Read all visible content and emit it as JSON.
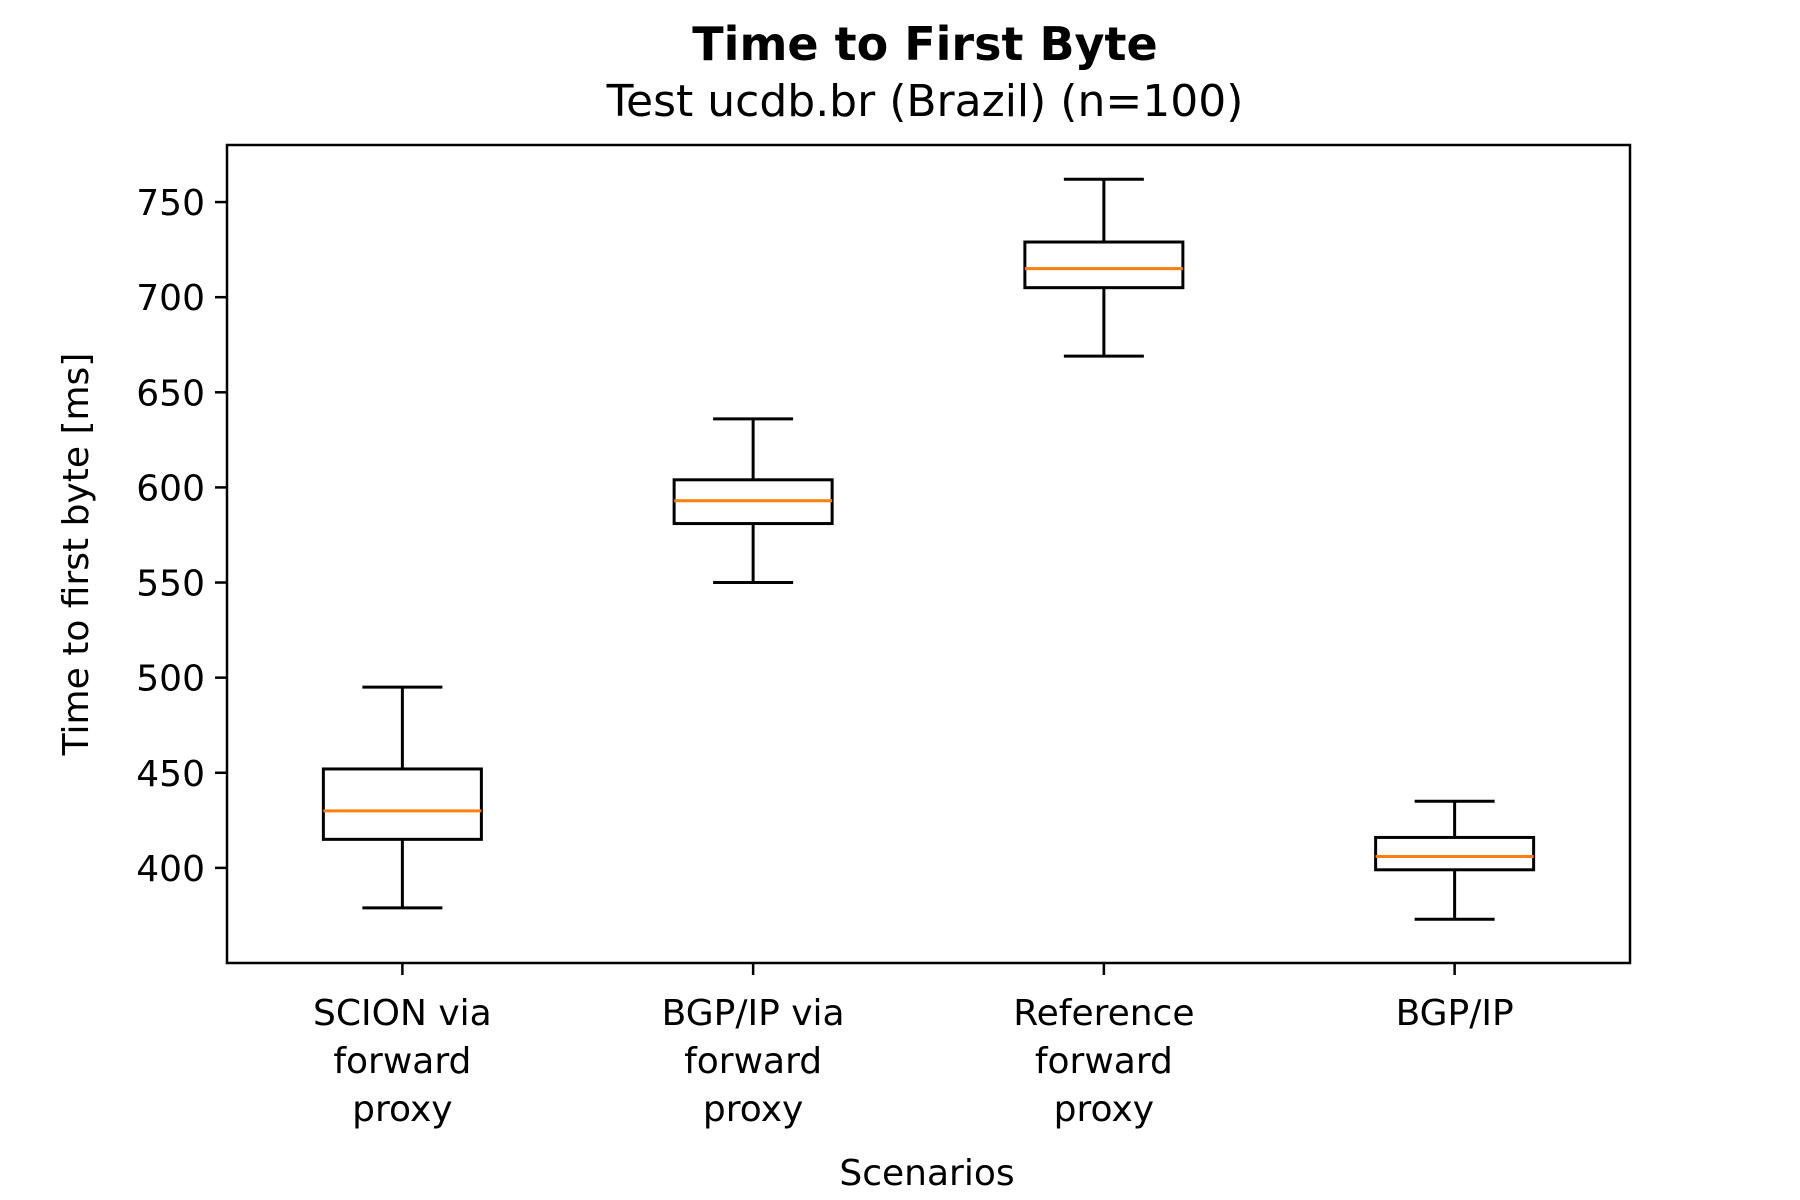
{
  "chart_data": {
    "type": "box",
    "title": "Time to First Byte",
    "subtitle": "Test ucdb.br (Brazil) (n=100)",
    "xlabel": "Scenarios",
    "ylabel": "Time to first byte [ms]",
    "ylim": [
      350,
      780
    ],
    "yticks": [
      400,
      450,
      500,
      550,
      600,
      650,
      700,
      750
    ],
    "colors": {
      "box": "#000000",
      "median": "#ff7f0e"
    },
    "categories": [
      [
        "SCION via",
        "forward",
        "proxy"
      ],
      [
        "BGP/IP via",
        "forward",
        "proxy"
      ],
      [
        "Reference",
        "forward",
        "proxy"
      ],
      [
        "BGP/IP"
      ]
    ],
    "boxes": [
      {
        "whisker_low": 379,
        "q1": 415,
        "median": 430,
        "q3": 452,
        "whisker_high": 495
      },
      {
        "whisker_low": 550,
        "q1": 581,
        "median": 593,
        "q3": 604,
        "whisker_high": 636
      },
      {
        "whisker_low": 669,
        "q1": 705,
        "median": 715,
        "q3": 729,
        "whisker_high": 762
      },
      {
        "whisker_low": 373,
        "q1": 399,
        "median": 406,
        "q3": 416,
        "whisker_high": 435
      }
    ]
  }
}
